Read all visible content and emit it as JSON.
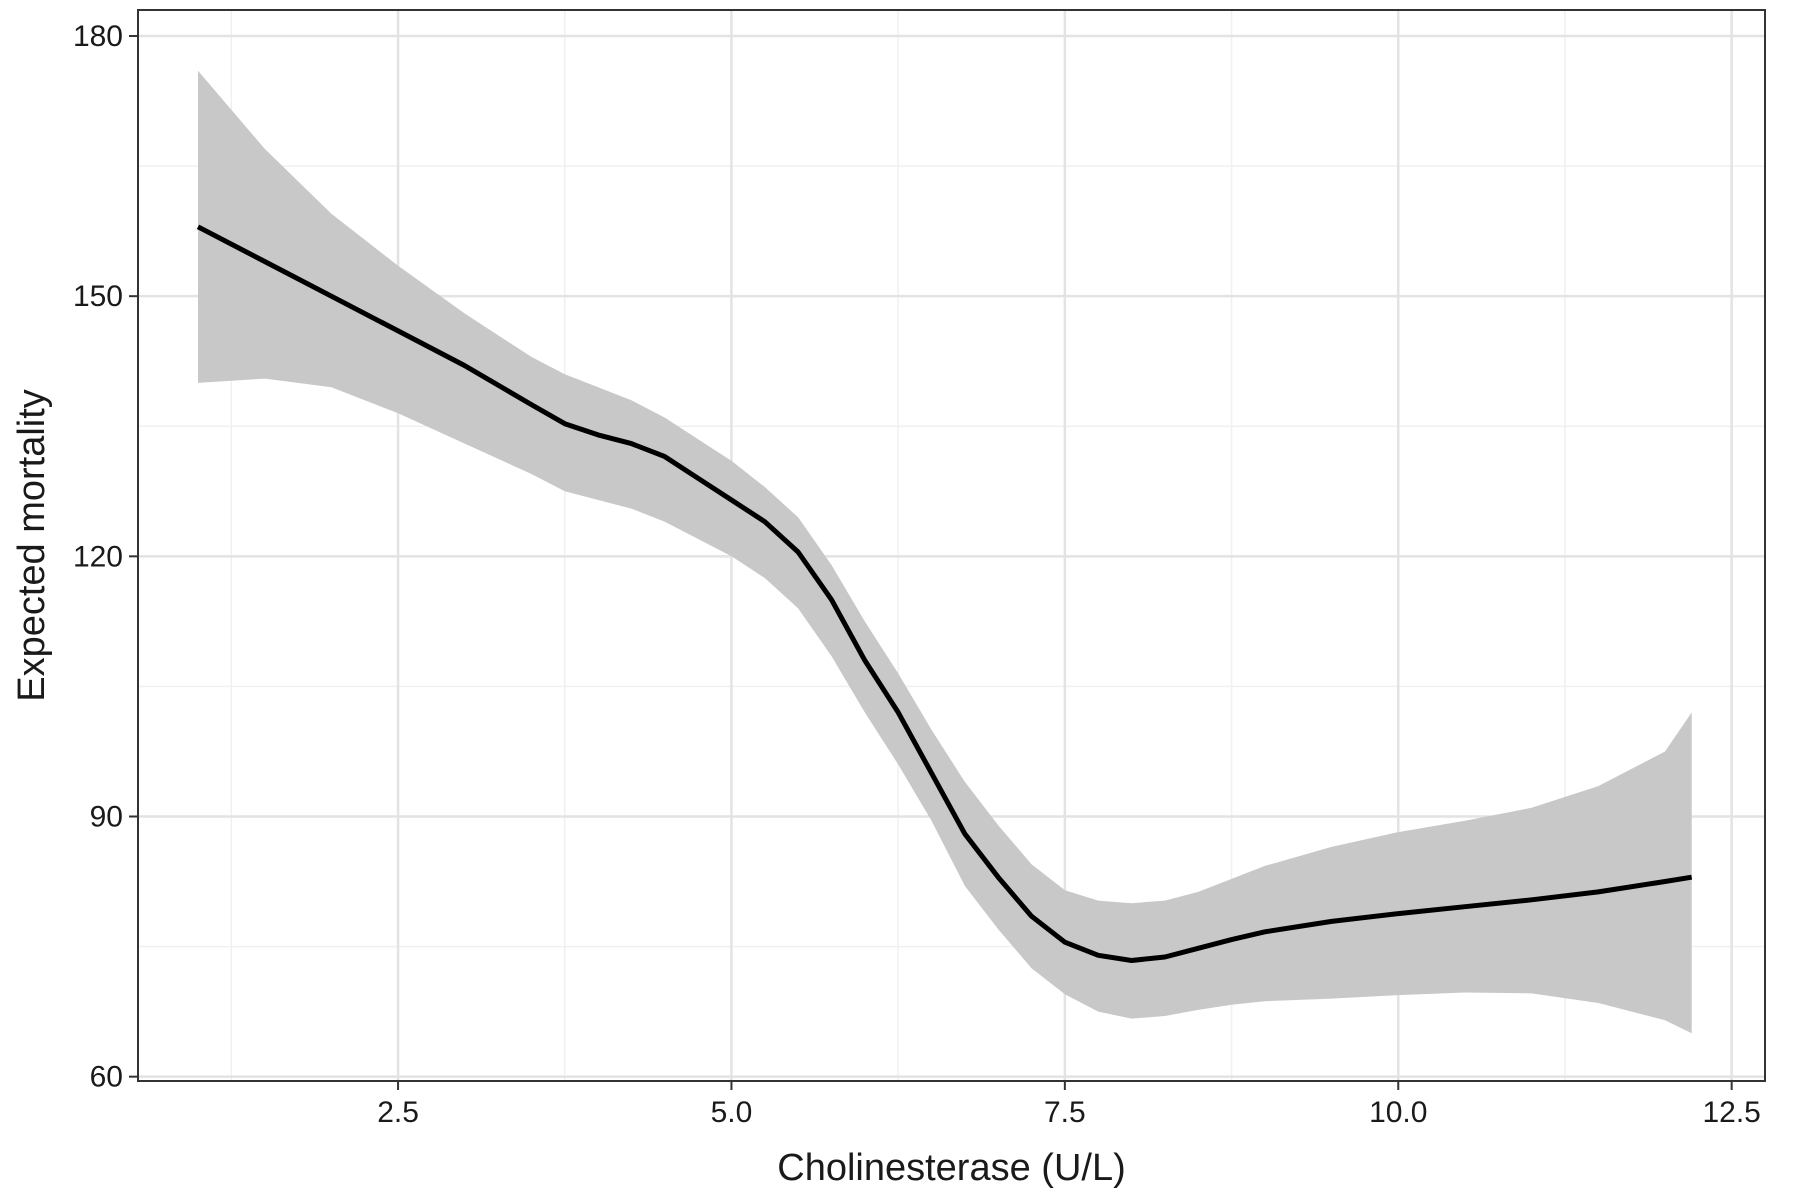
{
  "chart_data": {
    "type": "line",
    "title": "",
    "xlabel": "Cholinesterase (U/L)",
    "ylabel": "Expected mortality",
    "xlim": [
      0.55,
      12.75
    ],
    "ylim": [
      59.5,
      183
    ],
    "x_ticks": [
      2.5,
      5.0,
      7.5,
      10.0,
      12.5
    ],
    "x_tick_labels": [
      "2.5",
      "5.0",
      "7.5",
      "10.0",
      "12.5"
    ],
    "y_ticks": [
      60,
      90,
      120,
      150,
      180
    ],
    "y_tick_labels": [
      "60",
      "90",
      "120",
      "150",
      "180"
    ],
    "grid": true,
    "minor_grid": true,
    "legend": "none",
    "colors": {
      "line": "#000000",
      "ribbon": "#c8c8c8",
      "grid_major": "#e3e3e3",
      "grid_minor": "#f0f0f0",
      "panel_border": "#333333"
    },
    "series": [
      {
        "x": [
          1.0,
          1.5,
          2.0,
          2.5,
          3.0,
          3.5,
          3.75,
          4.0,
          4.25,
          4.5,
          4.75,
          5.0,
          5.25,
          5.5,
          5.75,
          6.0,
          6.25,
          6.5,
          6.75,
          7.0,
          7.25,
          7.5,
          7.75,
          8.0,
          8.25,
          8.5,
          8.75,
          9.0,
          9.5,
          10.0,
          10.5,
          11.0,
          11.5,
          12.0,
          12.2
        ],
        "y": [
          158,
          154,
          150,
          146,
          142,
          137.5,
          135.3,
          134,
          133,
          131.5,
          129,
          126.5,
          124,
          120.5,
          115,
          108,
          102,
          95,
          88,
          83,
          78.5,
          75.5,
          74,
          73.4,
          73.8,
          74.8,
          75.8,
          76.7,
          77.9,
          78.8,
          79.6,
          80.4,
          81.3,
          82.5,
          83
        ]
      }
    ],
    "ribbon": {
      "x": [
        1.0,
        1.5,
        2.0,
        2.5,
        3.0,
        3.5,
        3.75,
        4.0,
        4.25,
        4.5,
        4.75,
        5.0,
        5.25,
        5.5,
        5.75,
        6.0,
        6.25,
        6.5,
        6.75,
        7.0,
        7.25,
        7.5,
        7.75,
        8.0,
        8.25,
        8.5,
        8.75,
        9.0,
        9.5,
        10.0,
        10.5,
        11.0,
        11.5,
        12.0,
        12.2
      ],
      "upper": [
        176,
        167,
        159.5,
        153.5,
        148,
        143,
        141,
        139.5,
        138,
        136,
        133.5,
        131,
        128,
        124.5,
        119,
        112.5,
        106.5,
        100,
        94,
        89,
        84.5,
        81.5,
        80.3,
        80,
        80.3,
        81.3,
        82.8,
        84.3,
        86.5,
        88.2,
        89.5,
        91,
        93.5,
        97.5,
        102
      ],
      "lower": [
        140,
        140.5,
        139.5,
        136.5,
        133,
        129.5,
        127.5,
        126.5,
        125.5,
        124,
        122,
        120,
        117.5,
        114,
        108.5,
        102,
        96,
        89.5,
        82,
        77,
        72.5,
        69.5,
        67.5,
        66.7,
        67,
        67.7,
        68.3,
        68.7,
        69,
        69.4,
        69.7,
        69.6,
        68.5,
        66.5,
        65
      ]
    }
  }
}
